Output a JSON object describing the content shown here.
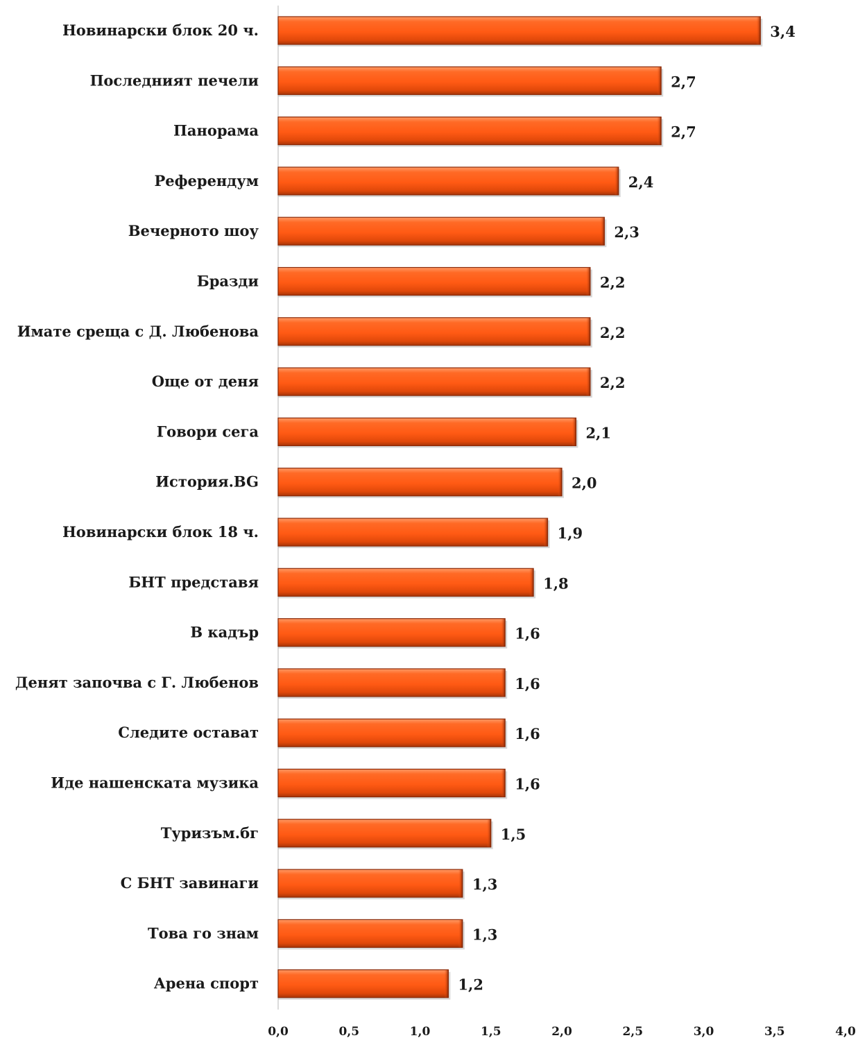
{
  "chart_data": {
    "type": "bar",
    "orientation": "horizontal",
    "categories": [
      "Новинарски блок 20 ч.",
      "Последният печели",
      "Панорама",
      "Референдум",
      "Вечерното шоу",
      "Бразди",
      "Имате среща с Д. Любенова",
      "Още от деня",
      "Говори сега",
      "История.BG",
      "Новинарски блок 18 ч.",
      "БНТ представя",
      "В кадър",
      "Денят започва с Г. Любенов",
      "Следите остават",
      "Иде нашенската музика",
      "Туризъм.бг",
      "С БНТ завинаги",
      "Това го знам",
      "Арена спорт"
    ],
    "values": [
      3.4,
      2.7,
      2.7,
      2.4,
      2.3,
      2.2,
      2.2,
      2.2,
      2.1,
      2.0,
      1.9,
      1.8,
      1.6,
      1.6,
      1.6,
      1.6,
      1.5,
      1.3,
      1.3,
      1.2
    ],
    "value_labels": [
      "3,4",
      "2,7",
      "2,7",
      "2,4",
      "2,3",
      "2,2",
      "2,2",
      "2,2",
      "2,1",
      "2,0",
      "1,9",
      "1,8",
      "1,6",
      "1,6",
      "1,6",
      "1,6",
      "1,5",
      "1,3",
      "1,3",
      "1,2"
    ],
    "xlim": [
      0,
      4.0
    ],
    "ticks": [
      "0,0",
      "0,5",
      "1,0",
      "1,5",
      "2,0",
      "2,5",
      "3,0",
      "3,5",
      "4,0"
    ],
    "tick_values": [
      0,
      0.5,
      1.0,
      1.5,
      2.0,
      2.5,
      3.0,
      3.5,
      4.0
    ],
    "grid": false,
    "legend": "none",
    "bar_color": "#ff5a14",
    "bar_edge_color": "#8a2a08"
  }
}
